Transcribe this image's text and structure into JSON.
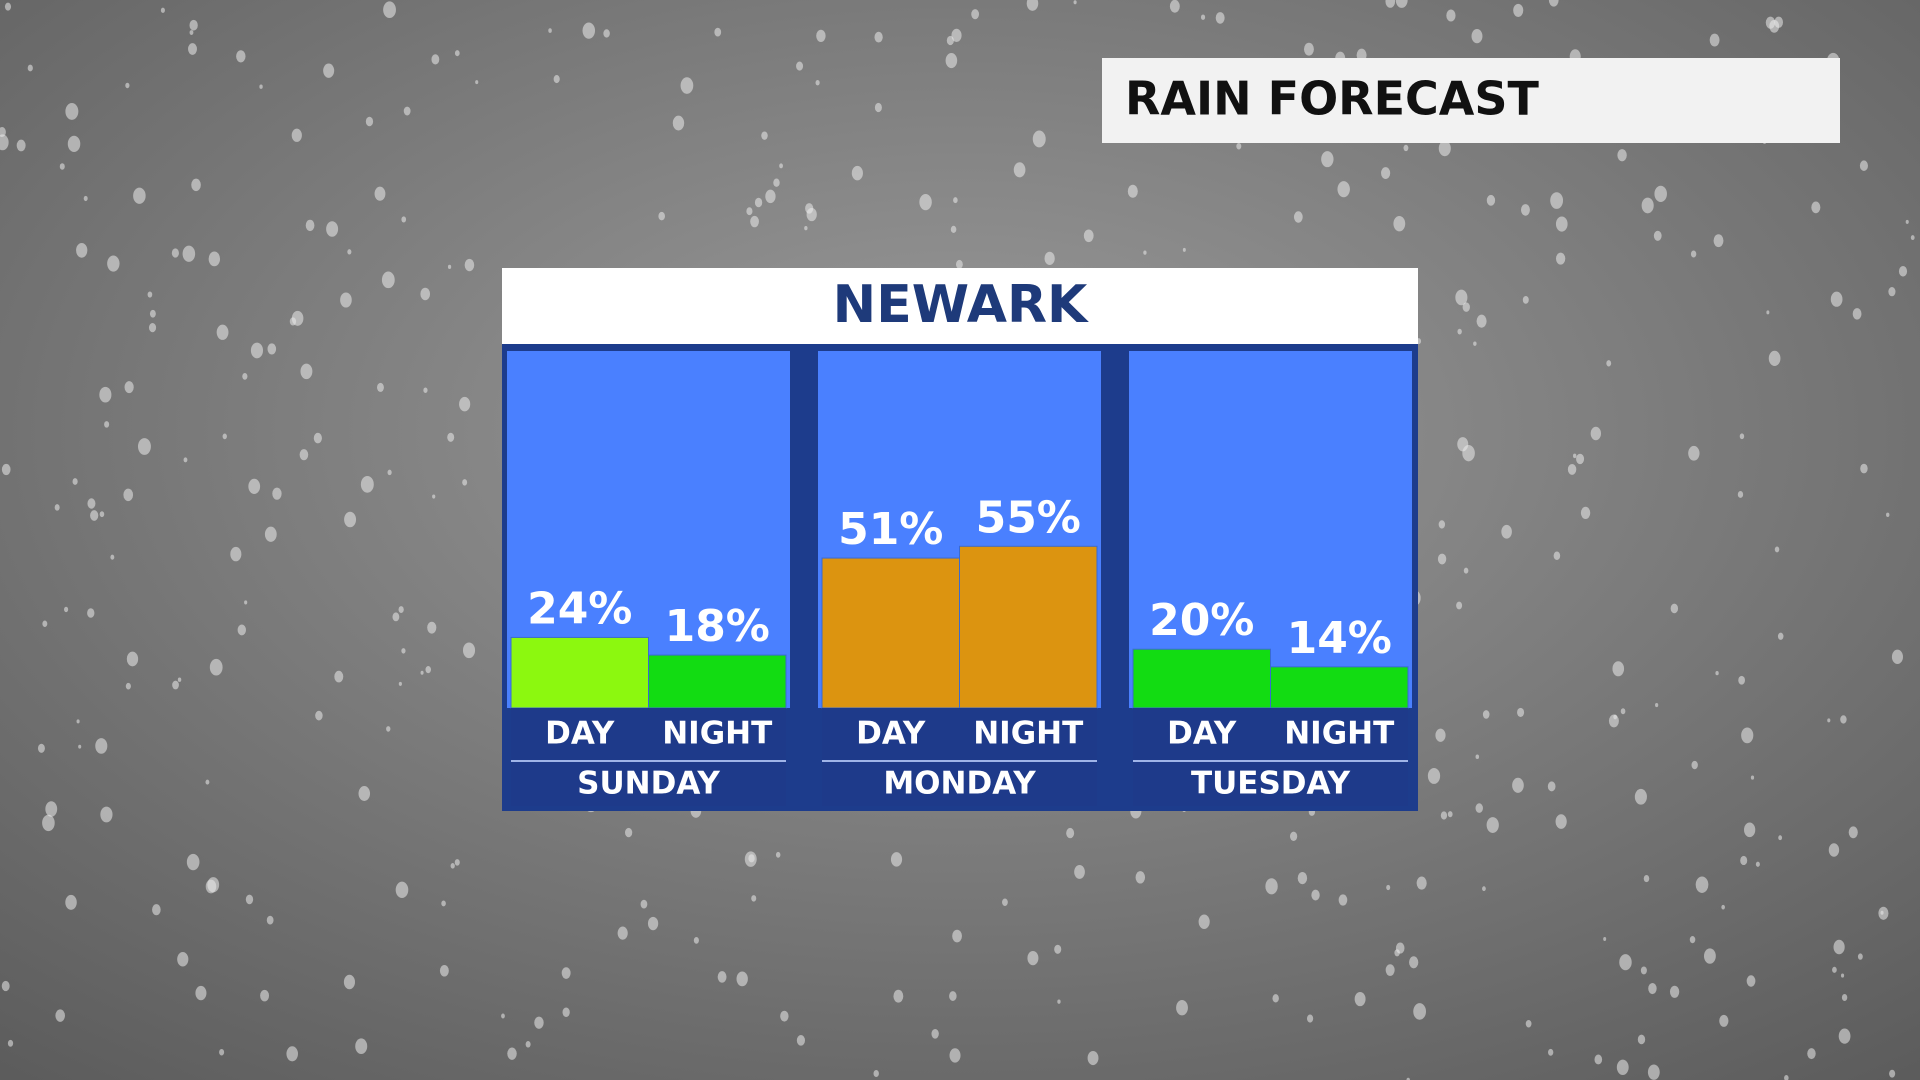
{
  "header": {
    "title": "RAIN FORECAST"
  },
  "chart_data": {
    "type": "bar",
    "title": "NEWARK",
    "groups": [
      {
        "name": "SUNDAY",
        "categories": [
          "DAY",
          "NIGHT"
        ],
        "values": [
          24,
          18
        ],
        "value_labels": [
          "24%",
          "18%"
        ],
        "colors": [
          "#8cf80f",
          "#12dc12"
        ]
      },
      {
        "name": "MONDAY",
        "categories": [
          "DAY",
          "NIGHT"
        ],
        "values": [
          51,
          55
        ],
        "value_labels": [
          "51%",
          "55%"
        ],
        "colors": [
          "#dc9410",
          "#dc9410"
        ]
      },
      {
        "name": "TUESDAY",
        "categories": [
          "DAY",
          "NIGHT"
        ],
        "values": [
          20,
          14
        ],
        "value_labels": [
          "20%",
          "14%"
        ],
        "colors": [
          "#12dc12",
          "#12dc12"
        ]
      }
    ]
  }
}
